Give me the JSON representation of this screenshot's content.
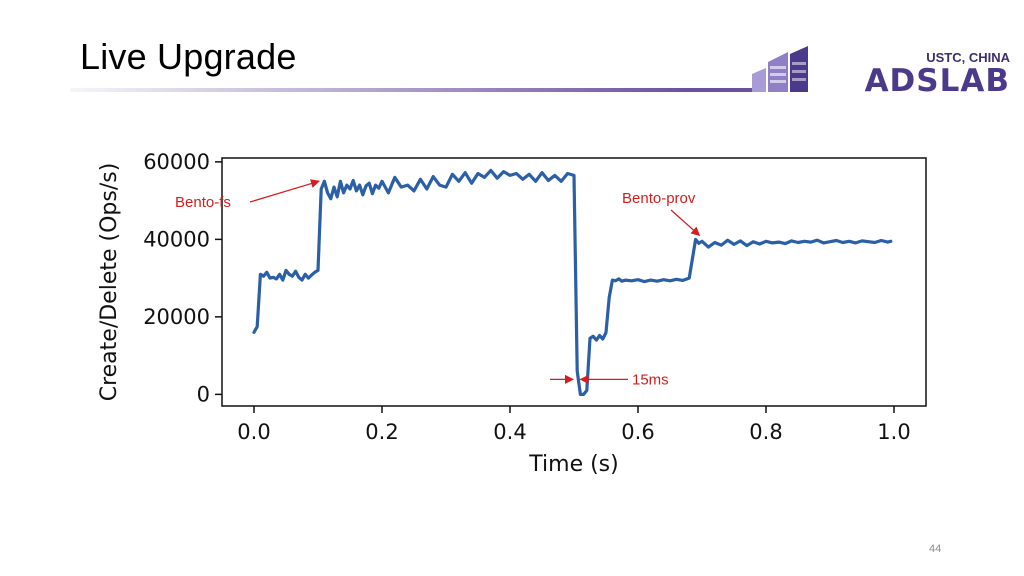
{
  "slide": {
    "title": "Live Upgrade",
    "page_number": "44",
    "logo": {
      "top_text": "USTC, CHINA",
      "main_text": "ADSLAB",
      "color": "#4b3a8c",
      "light_color": "#8f7fc6"
    }
  },
  "chart_data": {
    "type": "line",
    "title": "",
    "xlabel": "Time (s)",
    "ylabel": "Create/Delete (Ops/s)",
    "xlim": [
      -0.05,
      1.05
    ],
    "ylim": [
      -3000,
      61000
    ],
    "xticks": [
      0.0,
      0.2,
      0.4,
      0.6,
      0.8,
      1.0
    ],
    "xtick_labels": [
      "0.0",
      "0.2",
      "0.4",
      "0.6",
      "0.8",
      "1.0"
    ],
    "yticks": [
      0,
      20000,
      40000,
      60000
    ],
    "ytick_labels": [
      "0",
      "20000",
      "40000",
      "60000"
    ],
    "grid": false,
    "series": [
      {
        "color": "#2b5fa6",
        "x": [
          0.0,
          0.005,
          0.01,
          0.015,
          0.02,
          0.025,
          0.03,
          0.035,
          0.04,
          0.045,
          0.05,
          0.055,
          0.06,
          0.065,
          0.07,
          0.075,
          0.08,
          0.085,
          0.09,
          0.095,
          0.1,
          0.105,
          0.11,
          0.115,
          0.12,
          0.125,
          0.13,
          0.135,
          0.14,
          0.145,
          0.15,
          0.155,
          0.16,
          0.165,
          0.17,
          0.175,
          0.18,
          0.185,
          0.19,
          0.195,
          0.2,
          0.21,
          0.22,
          0.23,
          0.24,
          0.25,
          0.26,
          0.27,
          0.28,
          0.29,
          0.3,
          0.31,
          0.32,
          0.33,
          0.34,
          0.35,
          0.36,
          0.37,
          0.38,
          0.39,
          0.4,
          0.41,
          0.42,
          0.43,
          0.44,
          0.45,
          0.46,
          0.47,
          0.48,
          0.49,
          0.5,
          0.505,
          0.51,
          0.515,
          0.52,
          0.525,
          0.53,
          0.535,
          0.54,
          0.545,
          0.55,
          0.555,
          0.56,
          0.565,
          0.57,
          0.575,
          0.58,
          0.59,
          0.6,
          0.61,
          0.62,
          0.63,
          0.64,
          0.65,
          0.66,
          0.67,
          0.68,
          0.685,
          0.69,
          0.695,
          0.7,
          0.71,
          0.72,
          0.73,
          0.74,
          0.75,
          0.76,
          0.77,
          0.78,
          0.79,
          0.8,
          0.81,
          0.82,
          0.83,
          0.84,
          0.85,
          0.86,
          0.87,
          0.88,
          0.89,
          0.9,
          0.91,
          0.92,
          0.93,
          0.94,
          0.95,
          0.96,
          0.97,
          0.98,
          0.99,
          0.995
        ],
        "y": [
          16000,
          17500,
          31000,
          30500,
          31500,
          30000,
          30200,
          29800,
          31000,
          29500,
          32000,
          31000,
          30500,
          31800,
          30200,
          29500,
          31000,
          30000,
          30800,
          31500,
          32000,
          53000,
          55000,
          52000,
          50500,
          53500,
          51000,
          55000,
          52000,
          54000,
          53000,
          55200,
          52500,
          54000,
          51500,
          53800,
          54500,
          51800,
          54000,
          53200,
          55000,
          52000,
          56000,
          53500,
          54000,
          52500,
          55500,
          53000,
          56200,
          54000,
          53500,
          56800,
          55000,
          57200,
          54500,
          57000,
          56000,
          57800,
          55800,
          57500,
          56500,
          57000,
          55500,
          56800,
          55000,
          57200,
          55200,
          56500,
          55000,
          57000,
          56500,
          6000,
          0,
          0,
          1000,
          14500,
          15000,
          14000,
          15200,
          14300,
          16000,
          25000,
          29500,
          29300,
          29800,
          29200,
          29500,
          29300,
          29600,
          29100,
          29500,
          29200,
          29600,
          29300,
          29700,
          29400,
          30000,
          35000,
          40000,
          39000,
          39500,
          38000,
          39200,
          38500,
          39800,
          38700,
          39600,
          38400,
          39400,
          38800,
          39500,
          39100,
          39300,
          38900,
          39600,
          39200,
          39500,
          39300,
          39800,
          39100,
          39400,
          39700,
          39200,
          39500,
          39100,
          39600,
          39400,
          39200,
          39700,
          39300,
          39500
        ]
      }
    ],
    "annotations": [
      {
        "text": "Bento-fs",
        "color": "#d61d1d",
        "arrow_to": [
          0.108,
          54500
        ]
      },
      {
        "text": "Bento-prov",
        "color": "#d61d1d",
        "arrow_to": [
          0.693,
          40500
        ]
      },
      {
        "text": "15ms",
        "color": "#d61d1d",
        "bracket": [
          0.505,
          0.535
        ],
        "at_y": 8000
      }
    ]
  }
}
